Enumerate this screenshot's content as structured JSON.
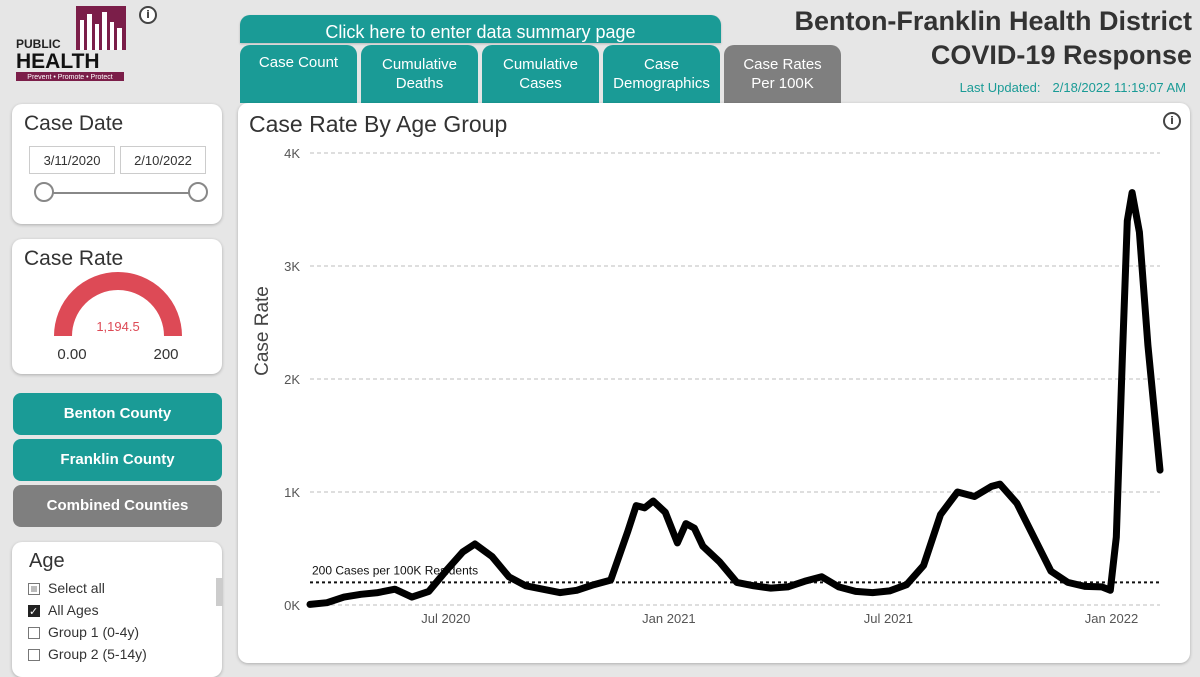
{
  "logo": {
    "line1": "PUBLIC",
    "line2": "HEALTH",
    "tagline": "Prevent • Promote • Protect"
  },
  "nav": {
    "summary_button": "Click here to enter data summary page",
    "tabs": [
      {
        "label": "Case Count"
      },
      {
        "label": "Cumulative Deaths"
      },
      {
        "label": "Cumulative Cases"
      },
      {
        "label": "Case Demographics"
      },
      {
        "label": "Case Rates Per 100K"
      }
    ]
  },
  "header": {
    "title_line1": "Benton-Franklin Health District",
    "title_line2": "COVID-19 Response",
    "updated_label": "Last Updated:",
    "updated_value": "2/18/2022 11:19:07 AM"
  },
  "date_filter": {
    "title": "Case Date",
    "start": "3/11/2020",
    "end": "2/10/2022"
  },
  "gauge": {
    "title": "Case Rate",
    "value_label": "1,194.5",
    "min_label": "0.00",
    "max_label": "200",
    "min": 0,
    "max": 200,
    "value": 1194.5,
    "color": "#dd4a56"
  },
  "county_buttons": [
    {
      "label": "Benton County",
      "color": "#1a9b96"
    },
    {
      "label": "Franklin County",
      "color": "#1a9b96"
    },
    {
      "label": "Combined Counties",
      "color": "#7f7f7f"
    }
  ],
  "age_filter": {
    "title": "Age",
    "items": [
      {
        "label": "Select all",
        "state": "partial"
      },
      {
        "label": "All Ages",
        "state": "checked"
      },
      {
        "label": "Group 1 (0-4y)",
        "state": "unchecked"
      },
      {
        "label": "Group 2 (5-14y)",
        "state": "unchecked"
      }
    ]
  },
  "chart_data": {
    "type": "line",
    "title": "Case Rate By Age Group",
    "ylabel": "Case Rate",
    "xlabel": "",
    "ylim": [
      0,
      4000
    ],
    "yticks": [
      {
        "value": 0,
        "label": "0K"
      },
      {
        "value": 1000,
        "label": "1K"
      },
      {
        "value": 2000,
        "label": "2K"
      },
      {
        "value": 3000,
        "label": "3K"
      },
      {
        "value": 4000,
        "label": "4K"
      }
    ],
    "xlim": [
      "2020-03-11",
      "2022-02-10"
    ],
    "xticks": [
      {
        "value": "2020-07-01",
        "label": "Jul 2020"
      },
      {
        "value": "2021-01-01",
        "label": "Jan 2021"
      },
      {
        "value": "2021-07-01",
        "label": "Jul 2021"
      },
      {
        "value": "2022-01-01",
        "label": "Jan 2022"
      }
    ],
    "grid": true,
    "reference_line": {
      "value": 200,
      "label": "200 Cases per 100K Residents"
    },
    "series": [
      {
        "color": "#000000",
        "points": [
          [
            "2020-03-11",
            5
          ],
          [
            "2020-03-25",
            20
          ],
          [
            "2020-04-08",
            70
          ],
          [
            "2020-04-22",
            95
          ],
          [
            "2020-05-06",
            110
          ],
          [
            "2020-05-20",
            140
          ],
          [
            "2020-06-03",
            70
          ],
          [
            "2020-06-17",
            120
          ],
          [
            "2020-07-01",
            300
          ],
          [
            "2020-07-15",
            470
          ],
          [
            "2020-07-25",
            540
          ],
          [
            "2020-08-08",
            430
          ],
          [
            "2020-08-22",
            250
          ],
          [
            "2020-09-05",
            170
          ],
          [
            "2020-09-19",
            140
          ],
          [
            "2020-10-03",
            110
          ],
          [
            "2020-10-17",
            130
          ],
          [
            "2020-10-31",
            180
          ],
          [
            "2020-11-14",
            220
          ],
          [
            "2020-11-28",
            650
          ],
          [
            "2020-12-05",
            880
          ],
          [
            "2020-12-12",
            860
          ],
          [
            "2020-12-19",
            920
          ],
          [
            "2020-12-29",
            820
          ],
          [
            "2021-01-08",
            550
          ],
          [
            "2021-01-15",
            720
          ],
          [
            "2021-01-22",
            680
          ],
          [
            "2021-01-29",
            520
          ],
          [
            "2021-02-12",
            380
          ],
          [
            "2021-02-26",
            200
          ],
          [
            "2021-03-12",
            170
          ],
          [
            "2021-03-26",
            150
          ],
          [
            "2021-04-09",
            160
          ],
          [
            "2021-04-23",
            210
          ],
          [
            "2021-05-07",
            250
          ],
          [
            "2021-05-21",
            160
          ],
          [
            "2021-06-04",
            120
          ],
          [
            "2021-06-18",
            110
          ],
          [
            "2021-07-02",
            125
          ],
          [
            "2021-07-16",
            180
          ],
          [
            "2021-07-30",
            350
          ],
          [
            "2021-08-13",
            800
          ],
          [
            "2021-08-27",
            1000
          ],
          [
            "2021-09-10",
            960
          ],
          [
            "2021-09-24",
            1050
          ],
          [
            "2021-10-01",
            1070
          ],
          [
            "2021-10-15",
            900
          ],
          [
            "2021-10-29",
            600
          ],
          [
            "2021-11-12",
            300
          ],
          [
            "2021-11-26",
            200
          ],
          [
            "2021-12-10",
            165
          ],
          [
            "2021-12-24",
            160
          ],
          [
            "2021-12-31",
            130
          ],
          [
            "2022-01-05",
            600
          ],
          [
            "2022-01-10",
            2200
          ],
          [
            "2022-01-14",
            3400
          ],
          [
            "2022-01-18",
            3650
          ],
          [
            "2022-01-24",
            3300
          ],
          [
            "2022-01-31",
            2300
          ],
          [
            "2022-02-10",
            1194
          ]
        ]
      }
    ]
  }
}
